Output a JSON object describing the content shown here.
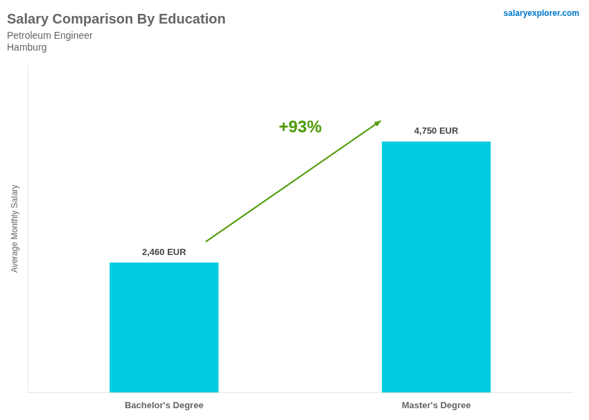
{
  "chart_data": {
    "type": "bar",
    "title": "Salary Comparison By Education",
    "subtitle": [
      "Petroleum Engineer",
      "Hamburg"
    ],
    "y_label": "Average Monthly Salary",
    "categories": [
      "Bachelor's Degree",
      "Master's Degree"
    ],
    "values": [
      2460,
      4750
    ],
    "value_labels": [
      "2,460 EUR",
      "4,750 EUR"
    ],
    "data_labels": true,
    "color": "#00cce0",
    "ylim": [
      0,
      6200
    ],
    "tick_labels": "x",
    "grid": false,
    "annotations": [
      "+93%",
      "salaryexplorer.com"
    ]
  }
}
